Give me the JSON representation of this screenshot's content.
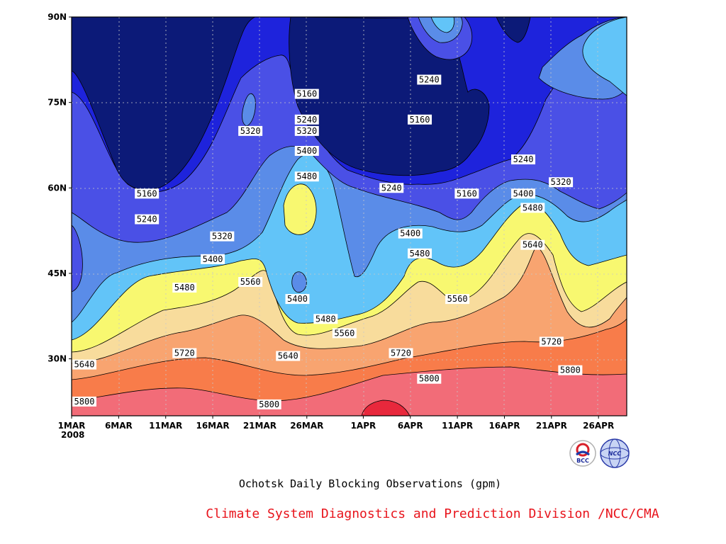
{
  "chart_data": {
    "type": "heatmap",
    "subtype": "filled-contour",
    "title": "Ochotsk Daily Blocking Observations (gpm)",
    "credit": "Climate System Diagnostics and Prediction Division /NCC/CMA",
    "x_ticks": [
      "1MAR",
      "6MAR",
      "11MAR",
      "16MAR",
      "21MAR",
      "26MAR",
      "1APR",
      "6APR",
      "11APR",
      "16APR",
      "21APR",
      "26APR"
    ],
    "x_year": "2008",
    "x_range": [
      "1MAR2008",
      "30APR2008"
    ],
    "y_ticks": [
      "30N",
      "45N",
      "60N",
      "75N",
      "90N"
    ],
    "y_range": [
      20,
      90
    ],
    "contour_levels": [
      5160,
      5240,
      5320,
      5400,
      5480,
      5560,
      5640,
      5720,
      5800
    ],
    "fill_colors": [
      "#0c1a78",
      "#1e23dc",
      "#4a50e6",
      "#5a8ce8",
      "#62c4f8",
      "#f8f870",
      "#f8dc9c",
      "#f8a470",
      "#f87c4a",
      "#f26c78",
      "#e8283c"
    ],
    "contour_labels": [
      {
        "value": "5160",
        "date": "26MAR",
        "lat": 76.5
      },
      {
        "value": "5240",
        "date": "26MAR",
        "lat": 72.0
      },
      {
        "value": "5320",
        "date": "26MAR",
        "lat": 70.0
      },
      {
        "value": "5400",
        "date": "26MAR",
        "lat": 66.5
      },
      {
        "value": "5480",
        "date": "26MAR",
        "lat": 62.0
      },
      {
        "value": "5320",
        "date": "20MAR",
        "lat": 70.0
      },
      {
        "value": "5240",
        "date": "8APR",
        "lat": 79.0
      },
      {
        "value": "5160",
        "date": "7APR",
        "lat": 72.0
      },
      {
        "value": "5240",
        "date": "18APR",
        "lat": 65.0
      },
      {
        "value": "5320",
        "date": "22APR",
        "lat": 61.0
      },
      {
        "value": "5160",
        "date": "9MAR",
        "lat": 59.0
      },
      {
        "value": "5240",
        "date": "4APR",
        "lat": 60.0
      },
      {
        "value": "5160",
        "date": "12APR",
        "lat": 59.0
      },
      {
        "value": "5400",
        "date": "18APR",
        "lat": 59.0
      },
      {
        "value": "5480",
        "date": "19APR",
        "lat": 56.5
      },
      {
        "value": "5240",
        "date": "9MAR",
        "lat": 54.5
      },
      {
        "value": "5320",
        "date": "17MAR",
        "lat": 51.5
      },
      {
        "value": "5400",
        "date": "6APR",
        "lat": 52.0
      },
      {
        "value": "5480",
        "date": "7APR",
        "lat": 48.5
      },
      {
        "value": "5640",
        "date": "19APR",
        "lat": 50.0
      },
      {
        "value": "5400",
        "date": "16MAR",
        "lat": 47.5
      },
      {
        "value": "5480",
        "date": "13MAR",
        "lat": 42.5
      },
      {
        "value": "5560",
        "date": "20MAR",
        "lat": 43.5
      },
      {
        "value": "5400",
        "date": "25MAR",
        "lat": 40.5
      },
      {
        "value": "5560",
        "date": "11APR",
        "lat": 40.5
      },
      {
        "value": "5480",
        "date": "28MAR",
        "lat": 37.0
      },
      {
        "value": "5560",
        "date": "30MAR",
        "lat": 34.5
      },
      {
        "value": "5720",
        "date": "13MAR",
        "lat": 31.0
      },
      {
        "value": "5640",
        "date": "24MAR",
        "lat": 30.5
      },
      {
        "value": "5720",
        "date": "5APR",
        "lat": 31.0
      },
      {
        "value": "5720",
        "date": "21APR",
        "lat": 33.0
      },
      {
        "value": "5640",
        "date": "1MAR",
        "lat": 29.0
      },
      {
        "value": "5800",
        "date": "1MAR",
        "lat": 22.5
      },
      {
        "value": "5800",
        "date": "8APR",
        "lat": 26.5
      },
      {
        "value": "5800",
        "date": "23APR",
        "lat": 28.0
      },
      {
        "value": "5800",
        "date": "22MAR",
        "lat": 22.0
      }
    ]
  },
  "logos": {
    "left": {
      "name": "BCC"
    },
    "right": {
      "name": "NCC"
    }
  }
}
